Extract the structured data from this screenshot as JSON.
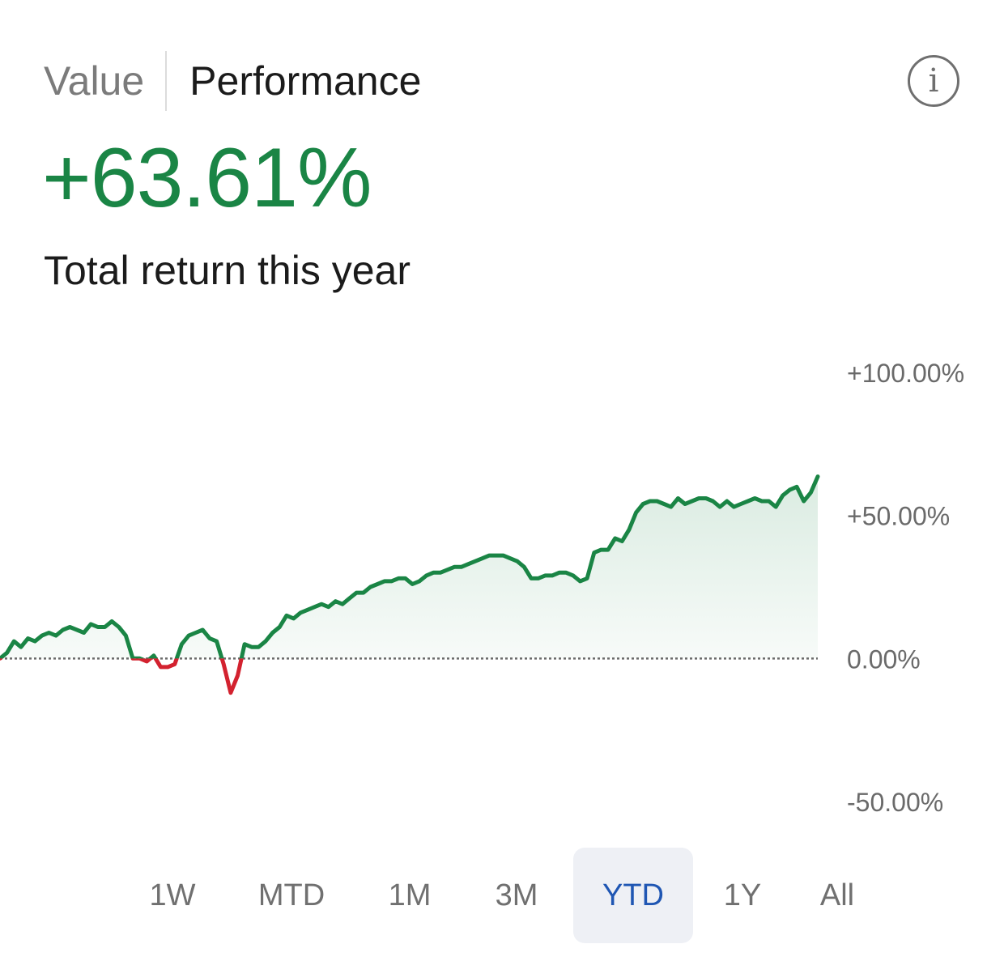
{
  "tabs": [
    {
      "label": "Value",
      "active": false
    },
    {
      "label": "Performance",
      "active": true
    }
  ],
  "info_icon": "info-circle-icon",
  "summary": {
    "total_return": "+63.61%",
    "caption": "Total return this year"
  },
  "colors": {
    "positive": "#1a8545",
    "negative": "#d3222f",
    "active_range": "#1f56b3",
    "active_range_bg": "#eef0f5"
  },
  "chart_data": {
    "type": "area",
    "ylim": [
      -50,
      100
    ],
    "y_ticks": [
      "+100.00%",
      "+50.00%",
      "0.00%",
      "-50.00%"
    ],
    "y_tick_values": [
      100,
      50,
      0,
      -50
    ],
    "baseline": 0,
    "series": [
      {
        "values": [
          0,
          2,
          6,
          4,
          7,
          6,
          8,
          9,
          8,
          10,
          11,
          10,
          9,
          12,
          11,
          11,
          13,
          11,
          8,
          0,
          0,
          -1,
          1,
          -3,
          -3,
          -2,
          5,
          8,
          9,
          10,
          7,
          6,
          -2,
          -12,
          -6,
          5,
          4,
          4,
          6,
          9,
          11,
          15,
          14,
          16,
          17,
          18,
          19,
          18,
          20,
          19,
          21,
          23,
          23,
          25,
          26,
          27,
          27,
          28,
          28,
          26,
          27,
          29,
          30,
          30,
          31,
          32,
          32,
          33,
          34,
          35,
          36,
          36,
          36,
          35,
          34,
          32,
          28,
          28,
          29,
          29,
          30,
          30,
          29,
          27,
          28,
          37,
          38,
          38,
          42,
          41,
          45,
          51,
          54,
          55,
          55,
          54,
          53,
          56,
          54,
          55,
          56,
          56,
          55,
          53,
          55,
          53,
          54,
          55,
          56,
          55,
          55,
          53,
          57,
          59,
          60,
          55,
          58,
          63.61
        ]
      }
    ],
    "selected_range": "YTD"
  },
  "ranges": [
    "1W",
    "MTD",
    "1M",
    "3M",
    "YTD",
    "1Y",
    "All"
  ]
}
